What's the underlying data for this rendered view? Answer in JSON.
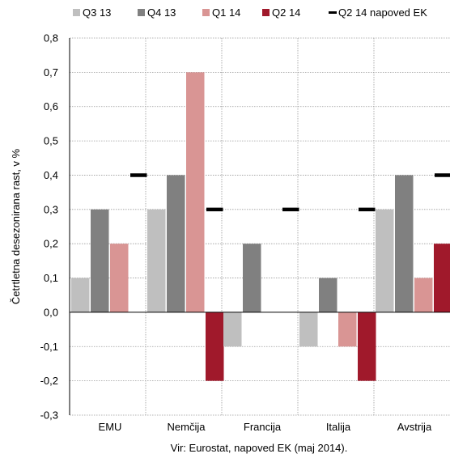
{
  "chart_data": {
    "type": "bar",
    "ylabel": "Četrtletna desezonirana rast, v %",
    "xlabel": "",
    "source": "Vir: Eurostat, napoved EK (maj 2014).",
    "categories": [
      "EMU",
      "Nemčija",
      "Francija",
      "Italija",
      "Avstrija"
    ],
    "ylim": [
      -0.3,
      0.8
    ],
    "yticks": [
      -0.3,
      -0.2,
      -0.1,
      0.0,
      0.1,
      0.2,
      0.3,
      0.4,
      0.5,
      0.6,
      0.7,
      0.8
    ],
    "ytick_labels": [
      "-0,3",
      "-0,2",
      "-0,1",
      "0,0",
      "0,1",
      "0,2",
      "0,3",
      "0,4",
      "0,5",
      "0,6",
      "0,7",
      "0,8"
    ],
    "grid": true,
    "legend_position": "top",
    "series": [
      {
        "name": "Q3 13",
        "type": "bar",
        "color": "#bfbfbf",
        "values": [
          0.1,
          0.3,
          -0.1,
          -0.1,
          0.3
        ]
      },
      {
        "name": "Q4 13",
        "type": "bar",
        "color": "#808080",
        "values": [
          0.3,
          0.4,
          0.2,
          0.1,
          0.4
        ]
      },
      {
        "name": "Q1 14",
        "type": "bar",
        "color": "#d99594",
        "values": [
          0.2,
          0.7,
          0.0,
          -0.1,
          0.1
        ]
      },
      {
        "name": "Q2 14",
        "type": "bar",
        "color": "#a0192b",
        "values": [
          null,
          -0.2,
          null,
          -0.2,
          0.2
        ]
      },
      {
        "name": "Q2 14 napoved EK",
        "type": "marker",
        "color": "#000000",
        "values": [
          0.4,
          0.3,
          0.3,
          0.3,
          0.4
        ]
      }
    ]
  }
}
